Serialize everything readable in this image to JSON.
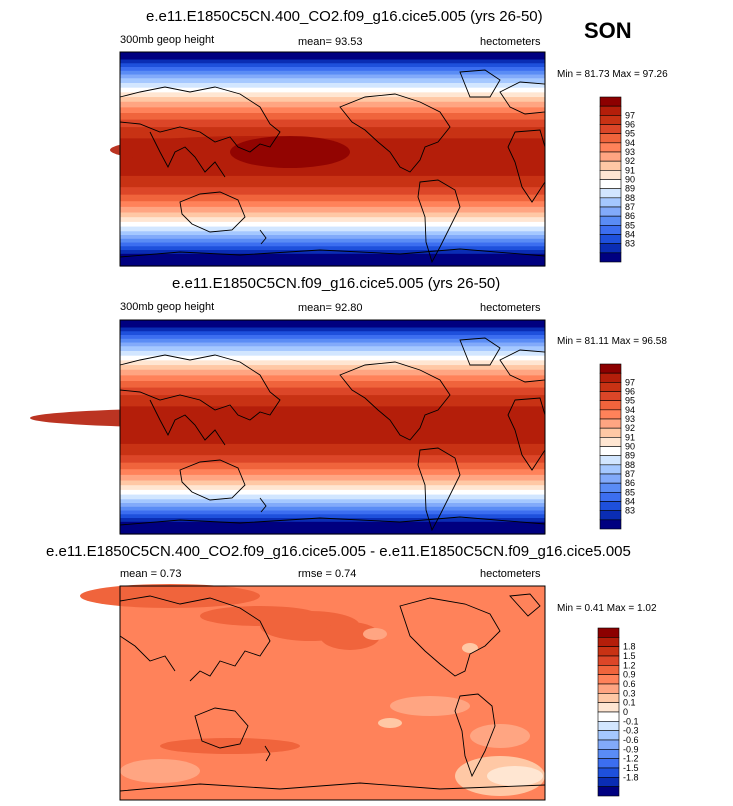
{
  "season": "SON",
  "colors": {
    "main_scale": [
      "#000080",
      "#0a2db4",
      "#1e50dc",
      "#3c6ef0",
      "#5a8cf5",
      "#82aafa",
      "#a5c8ff",
      "#d2e6ff",
      "#ffffff",
      "#ffe6d2",
      "#ffc8a5",
      "#ffa582",
      "#ff825a",
      "#f0643c",
      "#dc4628",
      "#c83214",
      "#b41e0a",
      "#8c0000"
    ],
    "diff_scale": [
      "#000080",
      "#0a2db4",
      "#1e50dc",
      "#3c6ef0",
      "#5a8cf5",
      "#82aafa",
      "#a5c8ff",
      "#d2e6ff",
      "#ffffff",
      "#ffe6d2",
      "#ffc8a5",
      "#ffa582",
      "#ff825a",
      "#f0643c",
      "#dc4628",
      "#c83214",
      "#b41e0a",
      "#8c0000"
    ]
  },
  "panels": [
    {
      "title": "e.e11.E1850C5CN.400_CO2.f09_g16.cice5.005 (yrs 26-50)",
      "left_label": "300mb geop height",
      "center_label": "mean=  93.53",
      "right_label": "hectometers",
      "minmax": "Min =  81.73 Max =  97.26",
      "colorbar_labels": [
        "97",
        "96",
        "95",
        "94",
        "93",
        "92",
        "91",
        "90",
        "89",
        "88",
        "87",
        "86",
        "85",
        "84",
        "83"
      ]
    },
    {
      "title": "e.e11.E1850C5CN.f09_g16.cice5.005 (yrs 26-50)",
      "left_label": "300mb geop height",
      "center_label": "mean=  92.80",
      "right_label": "hectometers",
      "minmax": "Min =  81.11 Max =  96.58",
      "colorbar_labels": [
        "97",
        "96",
        "95",
        "94",
        "93",
        "92",
        "91",
        "90",
        "89",
        "88",
        "87",
        "86",
        "85",
        "84",
        "83"
      ]
    },
    {
      "title": "e.e11.E1850C5CN.400_CO2.f09_g16.cice5.005 - e.e11.E1850C5CN.f09_g16.cice5.005",
      "left_label": "mean =   0.73",
      "center_label": "rmse =   0.74",
      "right_label": "hectometers",
      "minmax": "Min =  0.41 Max =   1.02",
      "colorbar_labels": [
        "1.8",
        "1.5",
        "1.2",
        "0.9",
        "0.6",
        "0.3",
        "0.1",
        "0",
        "-0.1",
        "-0.3",
        "-0.6",
        "-0.9",
        "-1.2",
        "-1.5",
        "-1.8"
      ]
    }
  ],
  "chart_data": [
    {
      "type": "heatmap",
      "title": "e.e11.E1850C5CN.400_CO2.f09_g16.cice5.005 (yrs 26-50)",
      "variable": "300mb geop height",
      "units": "hectometers",
      "mean": 93.53,
      "min": 81.73,
      "max": 97.26,
      "levels": [
        83,
        84,
        85,
        86,
        87,
        88,
        89,
        90,
        91,
        92,
        93,
        94,
        95,
        96,
        97
      ]
    },
    {
      "type": "heatmap",
      "title": "e.e11.E1850C5CN.f09_g16.cice5.005 (yrs 26-50)",
      "variable": "300mb geop height",
      "units": "hectometers",
      "mean": 92.8,
      "min": 81.11,
      "max": 96.58,
      "levels": [
        83,
        84,
        85,
        86,
        87,
        88,
        89,
        90,
        91,
        92,
        93,
        94,
        95,
        96,
        97
      ]
    },
    {
      "type": "heatmap",
      "title": "e.e11.E1850C5CN.400_CO2.f09_g16.cice5.005 - e.e11.E1850C5CN.f09_g16.cice5.005",
      "units": "hectometers",
      "mean": 0.73,
      "rmse": 0.74,
      "min": 0.41,
      "max": 1.02,
      "levels": [
        -1.8,
        -1.5,
        -1.2,
        -0.9,
        -0.6,
        -0.3,
        -0.1,
        0,
        0.1,
        0.3,
        0.6,
        0.9,
        1.2,
        1.5,
        1.8
      ]
    }
  ]
}
